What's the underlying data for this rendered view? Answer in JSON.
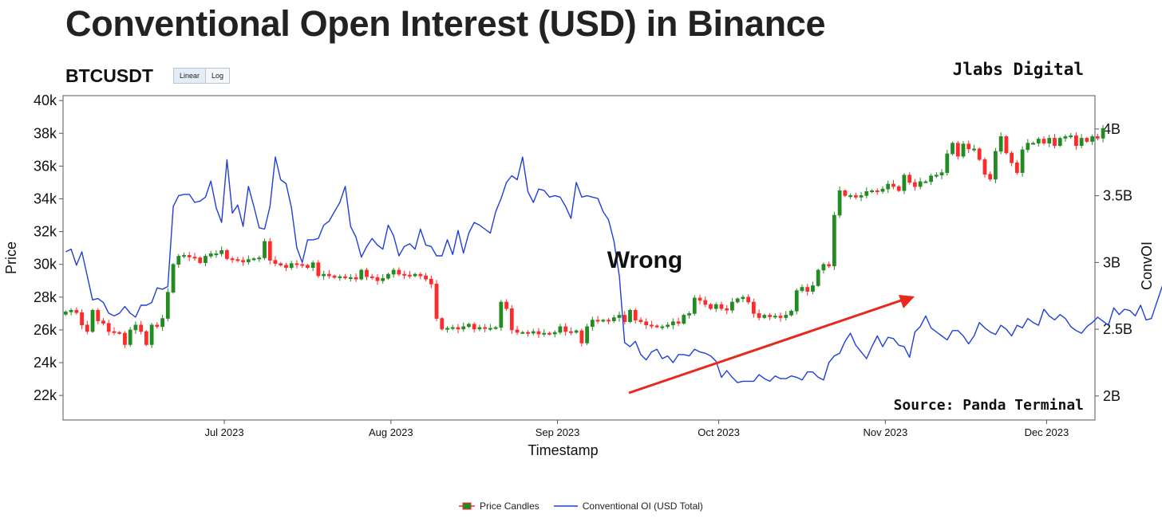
{
  "title": "Conventional Open Interest (USD) in Binance",
  "symbol": "BTCUSDT",
  "scale_buttons": [
    "Linear",
    "Log"
  ],
  "active_scale": "Linear",
  "brand": "Jlabs Digital",
  "source": "Source: Panda Terminal",
  "annotation": "Wrong",
  "colors": {
    "up": "#228b22",
    "down": "#ff2a2a",
    "oi_line": "#1f3fd8",
    "arrow": "#e8281c"
  },
  "chart_data": {
    "type": "line",
    "xlabel": "Timestamp",
    "ylabel": "Price",
    "y2label": "ConvOI",
    "x_range": [
      "2023-06-01",
      "2023-12-10"
    ],
    "y_range": [
      20500,
      40300
    ],
    "y2_range": [
      1.82,
      4.25
    ],
    "y_ticks": [
      22000,
      24000,
      26000,
      28000,
      30000,
      32000,
      34000,
      36000,
      38000,
      40000
    ],
    "y_tick_labels": [
      "22k",
      "24k",
      "26k",
      "28k",
      "30k",
      "32k",
      "34k",
      "36k",
      "38k",
      "40k"
    ],
    "y2_ticks": [
      2,
      2.5,
      3,
      3.5,
      4
    ],
    "y2_tick_labels": [
      "2B",
      "2.5B",
      "3B",
      "3.5B",
      "4B"
    ],
    "x_ticks": [
      "2023-07-01",
      "2023-08-01",
      "2023-09-01",
      "2023-10-01",
      "2023-11-01",
      "2023-12-01"
    ],
    "x_tick_labels": [
      "Jul 2023",
      "Aug 2023",
      "Sep 2023",
      "Oct 2023",
      "Nov 2023",
      "Dec 2023"
    ],
    "legend_position": "bottom-center",
    "grid": false,
    "candles": {
      "name": "Price Candles",
      "start_date": "2023-06-01",
      "close": [
        27100,
        27200,
        27050,
        26300,
        25900,
        27200,
        26550,
        26400,
        25900,
        25850,
        25800,
        25100,
        26000,
        26300,
        25900,
        25100,
        26300,
        26200,
        26700,
        28300,
        30000,
        30500,
        30550,
        30450,
        30400,
        30100,
        30500,
        30650,
        30650,
        30850,
        30350,
        30300,
        30250,
        30150,
        30300,
        30350,
        30400,
        31400,
        30250,
        30050,
        29950,
        29800,
        30050,
        30000,
        29950,
        29800,
        30100,
        29300,
        29400,
        29300,
        29200,
        29250,
        29200,
        29200,
        29100,
        29650,
        29250,
        29200,
        29000,
        29150,
        29400,
        29650,
        29400,
        29350,
        29300,
        29400,
        29300,
        29100,
        28800,
        26700,
        26050,
        26100,
        26150,
        26050,
        26200,
        26350,
        26050,
        26150,
        26100,
        26100,
        26150,
        27700,
        27300,
        26000,
        25850,
        25850,
        25800,
        25900,
        25750,
        25800,
        25750,
        25850,
        26200,
        25900,
        25850,
        25950,
        25200,
        26200,
        26600,
        26550,
        26600,
        26550,
        26750,
        26900,
        26500,
        27200,
        26600,
        26500,
        26300,
        26250,
        26200,
        26200,
        26300,
        26500,
        26400,
        26900,
        27000,
        27950,
        27800,
        27550,
        27300,
        27550,
        27300,
        27200,
        27700,
        27900,
        28000,
        27700,
        27000,
        26750,
        26900,
        26800,
        26850,
        26750,
        26900,
        27150,
        28400,
        28600,
        28350,
        28700,
        29650,
        30000,
        29900,
        33000,
        34500,
        34200,
        34200,
        34100,
        34200,
        34450,
        34500,
        34450,
        34600,
        34900,
        34750,
        34500,
        35450,
        35000,
        34750,
        35050,
        35050,
        35400,
        35450,
        35600,
        36750,
        37400,
        36600,
        37350,
        37050,
        37050,
        36400,
        35500,
        35200,
        36900,
        37800,
        36800,
        36200,
        35600,
        37000,
        37400,
        37400,
        37650,
        37400,
        37700,
        37250,
        37700,
        37800,
        37850,
        37250,
        37700,
        37500,
        37800,
        37700,
        38300
      ]
    },
    "oi": {
      "name": "Conventional OI (USD Total)",
      "start_date": "2023-06-01",
      "values": [
        3.08,
        3.1,
        2.98,
        3.08,
        2.9,
        2.72,
        2.73,
        2.7,
        2.62,
        2.6,
        2.62,
        2.67,
        2.62,
        2.59,
        2.68,
        2.68,
        2.7,
        2.81,
        2.8,
        2.82,
        3.42,
        3.5,
        3.51,
        3.51,
        3.45,
        3.46,
        3.49,
        3.61,
        3.41,
        3.3,
        3.77,
        3.37,
        3.43,
        3.27,
        3.57,
        3.42,
        3.26,
        3.25,
        3.42,
        3.79,
        3.62,
        3.59,
        3.41,
        3.11,
        3.0,
        3.17,
        3.17,
        3.18,
        3.28,
        3.31,
        3.38,
        3.45,
        3.57,
        3.27,
        3.19,
        3.04,
        3.12,
        3.18,
        3.13,
        3.1,
        3.28,
        3.2,
        3.05,
        3.12,
        3.14,
        3.1,
        3.25,
        3.13,
        3.12,
        3.05,
        3.05,
        3.17,
        3.06,
        3.24,
        3.07,
        3.22,
        3.3,
        3.28,
        3.25,
        3.22,
        3.38,
        3.48,
        3.6,
        3.65,
        3.62,
        3.79,
        3.53,
        3.45,
        3.55,
        3.54,
        3.49,
        3.5,
        3.49,
        3.42,
        3.33,
        3.6,
        3.49,
        3.5,
        3.49,
        3.48,
        3.38,
        3.32,
        3.16,
        2.9,
        2.4,
        2.37,
        2.41,
        2.31,
        2.27,
        2.33,
        2.35,
        2.28,
        2.3,
        2.25,
        2.31,
        2.31,
        2.3,
        2.35,
        2.33,
        2.32,
        2.3,
        2.26,
        2.14,
        2.19,
        2.14,
        2.1,
        2.11,
        2.11,
        2.11,
        2.16,
        2.13,
        2.11,
        2.15,
        2.13,
        2.13,
        2.15,
        2.14,
        2.12,
        2.18,
        2.18,
        2.14,
        2.12,
        2.25,
        2.3,
        2.32,
        2.41,
        2.47,
        2.38,
        2.33,
        2.28,
        2.37,
        2.45,
        2.37,
        2.44,
        2.43,
        2.38,
        2.37,
        2.29,
        2.48,
        2.52,
        2.6,
        2.51,
        2.48,
        2.45,
        2.42,
        2.49,
        2.49,
        2.45,
        2.39,
        2.45,
        2.55,
        2.51,
        2.48,
        2.46,
        2.53,
        2.5,
        2.45,
        2.53,
        2.51,
        2.58,
        2.55,
        2.53,
        2.65,
        2.6,
        2.57,
        2.61,
        2.58,
        2.52,
        2.49,
        2.47,
        2.52,
        2.55,
        2.59,
        2.56,
        2.53,
        2.66,
        2.61,
        2.65,
        2.64,
        2.6,
        2.68,
        2.57,
        2.58,
        2.7,
        2.82,
        2.88
      ]
    }
  }
}
